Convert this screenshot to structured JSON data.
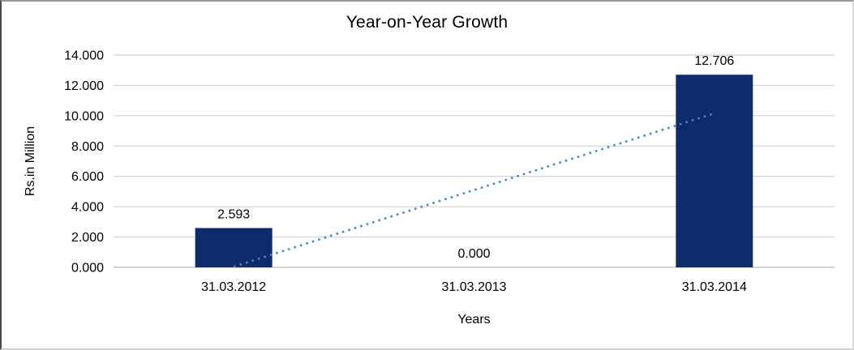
{
  "chart_data": {
    "type": "bar",
    "title": "Year-on-Year Growth",
    "xlabel": "Years",
    "ylabel": "Rs.in Million",
    "categories": [
      "31.03.2012",
      "31.03.2013",
      "31.03.2014"
    ],
    "values": [
      2.593,
      0,
      12.706
    ],
    "data_labels": [
      "2.593",
      "0.000",
      "12.706"
    ],
    "y_ticks": [
      "0.000",
      "2.000",
      "4.000",
      "6.000",
      "8.000",
      "10.000",
      "12.000",
      "14.000"
    ],
    "ylim": [
      0,
      14
    ],
    "grid": true,
    "legend": "none",
    "bar_color": "#0e2b6b",
    "gridline_color": "#d9d9d9",
    "axis_line_color": "#c6c6c6",
    "trendline": {
      "style": "dotted",
      "color": "#4a86c8",
      "from": {
        "category_index": 0,
        "value": 0.04
      },
      "to": {
        "category_index": 2,
        "value": 10.16
      }
    }
  }
}
